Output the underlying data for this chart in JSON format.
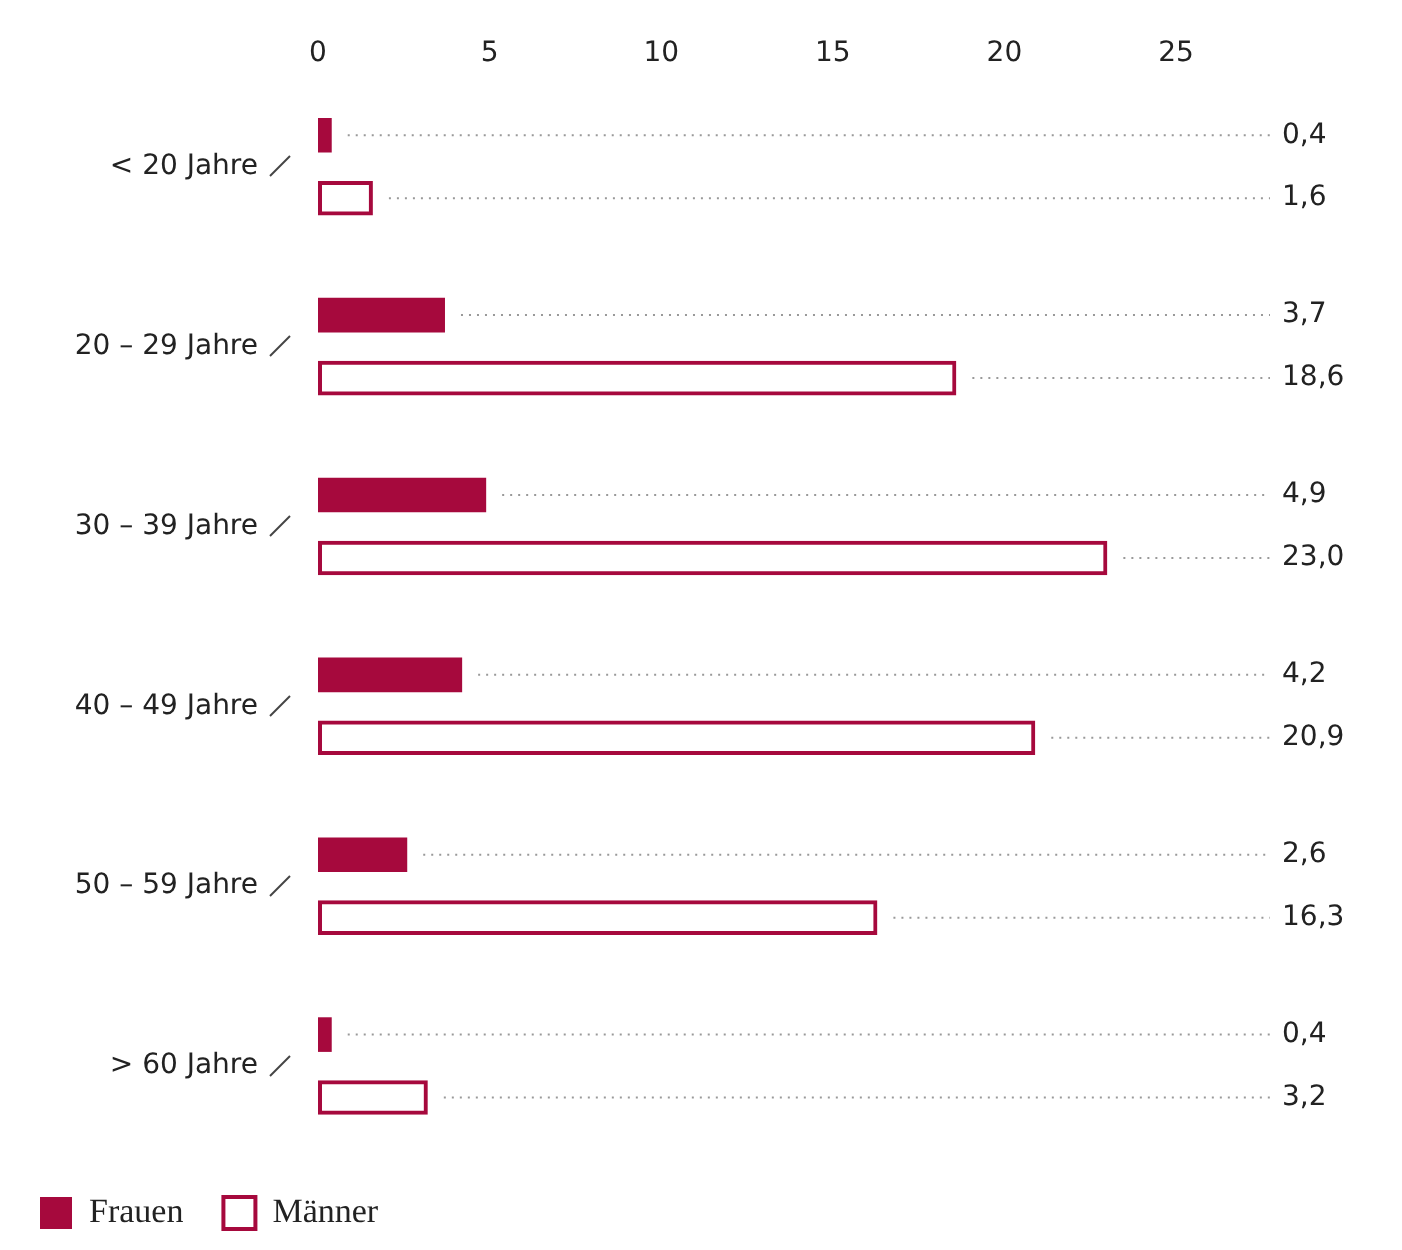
{
  "chart_data": {
    "type": "bar",
    "orientation": "horizontal",
    "categories": [
      "< 20 Jahre",
      "20 – 29 Jahre",
      "30 – 39 Jahre",
      "40 – 49 Jahre",
      "50 – 59 Jahre",
      "> 60 Jahre"
    ],
    "series": [
      {
        "name": "Frauen",
        "color": "#a6093d",
        "values": [
          0.4,
          3.7,
          4.9,
          4.2,
          2.6,
          0.4
        ],
        "value_labels": [
          "0,4",
          "3,7",
          "4,9",
          "4,2",
          "2,6",
          "0,4"
        ]
      },
      {
        "name": "Männer",
        "color": "#a6093d",
        "values": [
          1.6,
          18.6,
          23.0,
          20.9,
          16.3,
          3.2
        ],
        "value_labels": [
          "1,6",
          "18,6",
          "23,0",
          "20,9",
          "16,3",
          "3,2"
        ]
      }
    ],
    "xlim": [
      0,
      25
    ],
    "xticks": [
      0,
      5,
      10,
      15,
      20,
      25
    ],
    "grid": false,
    "legend": "bottom left"
  }
}
